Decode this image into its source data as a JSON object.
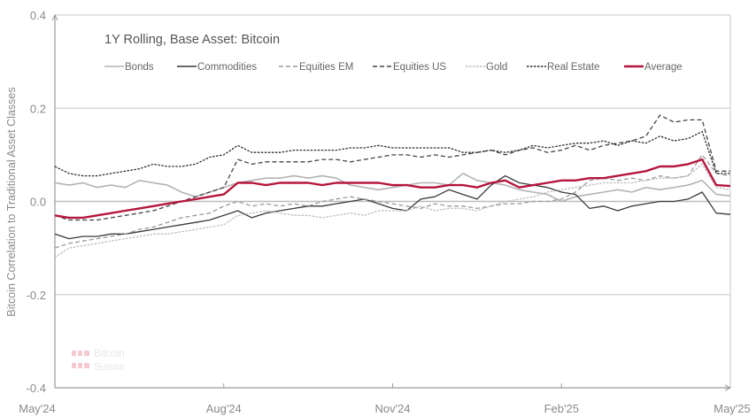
{
  "chart_data": {
    "type": "line",
    "title": "1Y Rolling, Base Asset: Bitcoin",
    "xlabel": "",
    "ylabel": "Bitcoin Correlation to Traditional Asset Classes",
    "ylim": [
      -0.4,
      0.4
    ],
    "yticks": [
      0.4,
      0.2,
      0.0,
      -0.2,
      -0.4
    ],
    "ytick_labels": [
      "0.4",
      "0.2",
      "0.0",
      "-0.2",
      "-0.4"
    ],
    "xlim_months": [
      0,
      12
    ],
    "xticks": [
      0,
      3,
      6,
      9,
      12
    ],
    "xtick_labels": [
      "May'24",
      "Aug'24",
      "Nov'24",
      "Feb'25",
      "May'25"
    ],
    "grid": "horizontal",
    "legend_position": "top",
    "x_months": [
      0,
      0.25,
      0.5,
      0.75,
      1,
      1.25,
      1.5,
      1.75,
      2,
      2.25,
      2.5,
      2.75,
      3,
      3.25,
      3.5,
      3.75,
      4,
      4.25,
      4.5,
      4.75,
      5,
      5.25,
      5.5,
      5.75,
      6,
      6.25,
      6.5,
      6.75,
      7,
      7.25,
      7.5,
      7.75,
      8,
      8.25,
      8.5,
      8.75,
      9,
      9.25,
      9.5,
      9.75,
      10,
      10.25,
      10.5,
      10.75,
      11,
      11.25,
      11.5,
      11.75,
      12
    ],
    "series": [
      {
        "name": "Bonds",
        "color": "#b3b3b3",
        "style": "solid",
        "width": 1.6,
        "values": [
          0.04,
          0.035,
          0.04,
          0.03,
          0.035,
          0.03,
          0.045,
          0.04,
          0.035,
          0.02,
          0.01,
          0.02,
          0.03,
          0.04,
          0.045,
          0.05,
          0.05,
          0.055,
          0.05,
          0.055,
          0.05,
          0.035,
          0.03,
          0.025,
          0.03,
          0.035,
          0.04,
          0.04,
          0.035,
          0.06,
          0.045,
          0.04,
          0.035,
          0.025,
          0.02,
          0.015,
          0.0,
          0.01,
          0.015,
          0.02,
          0.025,
          0.02,
          0.03,
          0.025,
          0.03,
          0.035,
          0.045,
          0.015,
          0.012
        ]
      },
      {
        "name": "Commodities",
        "color": "#3a3a3a",
        "style": "solid",
        "width": 1.3,
        "values": [
          -0.07,
          -0.08,
          -0.075,
          -0.075,
          -0.07,
          -0.07,
          -0.065,
          -0.06,
          -0.055,
          -0.05,
          -0.045,
          -0.04,
          -0.03,
          -0.02,
          -0.035,
          -0.025,
          -0.02,
          -0.015,
          -0.01,
          -0.01,
          -0.005,
          0.0,
          0.005,
          -0.005,
          -0.015,
          -0.02,
          0.005,
          0.01,
          0.025,
          0.015,
          0.005,
          0.035,
          0.055,
          0.04,
          0.035,
          0.03,
          0.02,
          0.015,
          -0.015,
          -0.01,
          -0.02,
          -0.01,
          -0.005,
          0.0,
          0.0,
          0.005,
          0.02,
          -0.025,
          -0.028
        ]
      },
      {
        "name": "Equities EM",
        "color": "#9a9a9a",
        "style": "dashed",
        "width": 1.3,
        "values": [
          -0.1,
          -0.09,
          -0.085,
          -0.08,
          -0.075,
          -0.07,
          -0.06,
          -0.055,
          -0.045,
          -0.035,
          -0.03,
          -0.025,
          -0.01,
          0.0,
          -0.01,
          -0.005,
          -0.01,
          -0.005,
          -0.01,
          0.0,
          0.005,
          0.01,
          0.005,
          0.0,
          -0.005,
          -0.01,
          -0.015,
          -0.005,
          -0.01,
          -0.01,
          -0.015,
          -0.01,
          -0.005,
          -0.005,
          0.0,
          0.0,
          0.005,
          0.02,
          0.045,
          0.05,
          0.045,
          0.05,
          0.045,
          0.055,
          0.05,
          0.055,
          0.1,
          0.06,
          0.055
        ]
      },
      {
        "name": "Equities US",
        "color": "#454545",
        "style": "dashed",
        "width": 1.3,
        "values": [
          -0.03,
          -0.04,
          -0.04,
          -0.04,
          -0.035,
          -0.03,
          -0.025,
          -0.02,
          -0.01,
          0.0,
          0.01,
          0.02,
          0.03,
          0.09,
          0.08,
          0.085,
          0.085,
          0.085,
          0.085,
          0.09,
          0.09,
          0.085,
          0.09,
          0.095,
          0.1,
          0.1,
          0.095,
          0.1,
          0.095,
          0.1,
          0.105,
          0.11,
          0.1,
          0.11,
          0.115,
          0.105,
          0.11,
          0.12,
          0.11,
          0.12,
          0.125,
          0.13,
          0.14,
          0.185,
          0.17,
          0.175,
          0.175,
          0.065,
          0.065
        ]
      },
      {
        "name": "Gold",
        "color": "#bdbdbd",
        "style": "dotted",
        "width": 1.3,
        "values": [
          -0.12,
          -0.1,
          -0.095,
          -0.09,
          -0.085,
          -0.08,
          -0.075,
          -0.07,
          -0.07,
          -0.065,
          -0.06,
          -0.055,
          -0.05,
          -0.03,
          -0.025,
          -0.02,
          -0.025,
          -0.03,
          -0.03,
          -0.035,
          -0.03,
          -0.025,
          -0.03,
          -0.02,
          -0.02,
          -0.02,
          -0.01,
          -0.02,
          -0.015,
          -0.015,
          -0.02,
          -0.01,
          0.0,
          0.005,
          0.01,
          0.02,
          0.025,
          0.03,
          0.035,
          0.04,
          0.04,
          0.04,
          0.045,
          0.05,
          0.05,
          0.055,
          0.08,
          0.03,
          0.025
        ]
      },
      {
        "name": "Real Estate",
        "color": "#2e2e2e",
        "style": "dotted",
        "width": 1.3,
        "values": [
          0.075,
          0.06,
          0.055,
          0.055,
          0.06,
          0.065,
          0.07,
          0.08,
          0.075,
          0.075,
          0.08,
          0.095,
          0.1,
          0.12,
          0.105,
          0.105,
          0.105,
          0.11,
          0.11,
          0.11,
          0.11,
          0.115,
          0.115,
          0.12,
          0.115,
          0.115,
          0.115,
          0.115,
          0.115,
          0.105,
          0.105,
          0.11,
          0.105,
          0.11,
          0.12,
          0.115,
          0.12,
          0.125,
          0.125,
          0.13,
          0.12,
          0.13,
          0.125,
          0.14,
          0.13,
          0.135,
          0.15,
          0.06,
          0.06
        ]
      },
      {
        "name": "Average",
        "color": "#b5163b",
        "style": "solid",
        "width": 2.4,
        "values": [
          -0.03,
          -0.035,
          -0.035,
          -0.03,
          -0.025,
          -0.02,
          -0.015,
          -0.01,
          -0.005,
          0.0,
          0.005,
          0.01,
          0.015,
          0.04,
          0.04,
          0.035,
          0.04,
          0.04,
          0.04,
          0.035,
          0.04,
          0.04,
          0.04,
          0.04,
          0.035,
          0.035,
          0.03,
          0.03,
          0.035,
          0.035,
          0.03,
          0.04,
          0.045,
          0.03,
          0.035,
          0.04,
          0.045,
          0.045,
          0.05,
          0.05,
          0.055,
          0.06,
          0.065,
          0.075,
          0.075,
          0.08,
          0.09,
          0.035,
          0.033
        ]
      }
    ]
  },
  "logo": {
    "line1": "Bitcoin",
    "line2": "Suisse"
  }
}
